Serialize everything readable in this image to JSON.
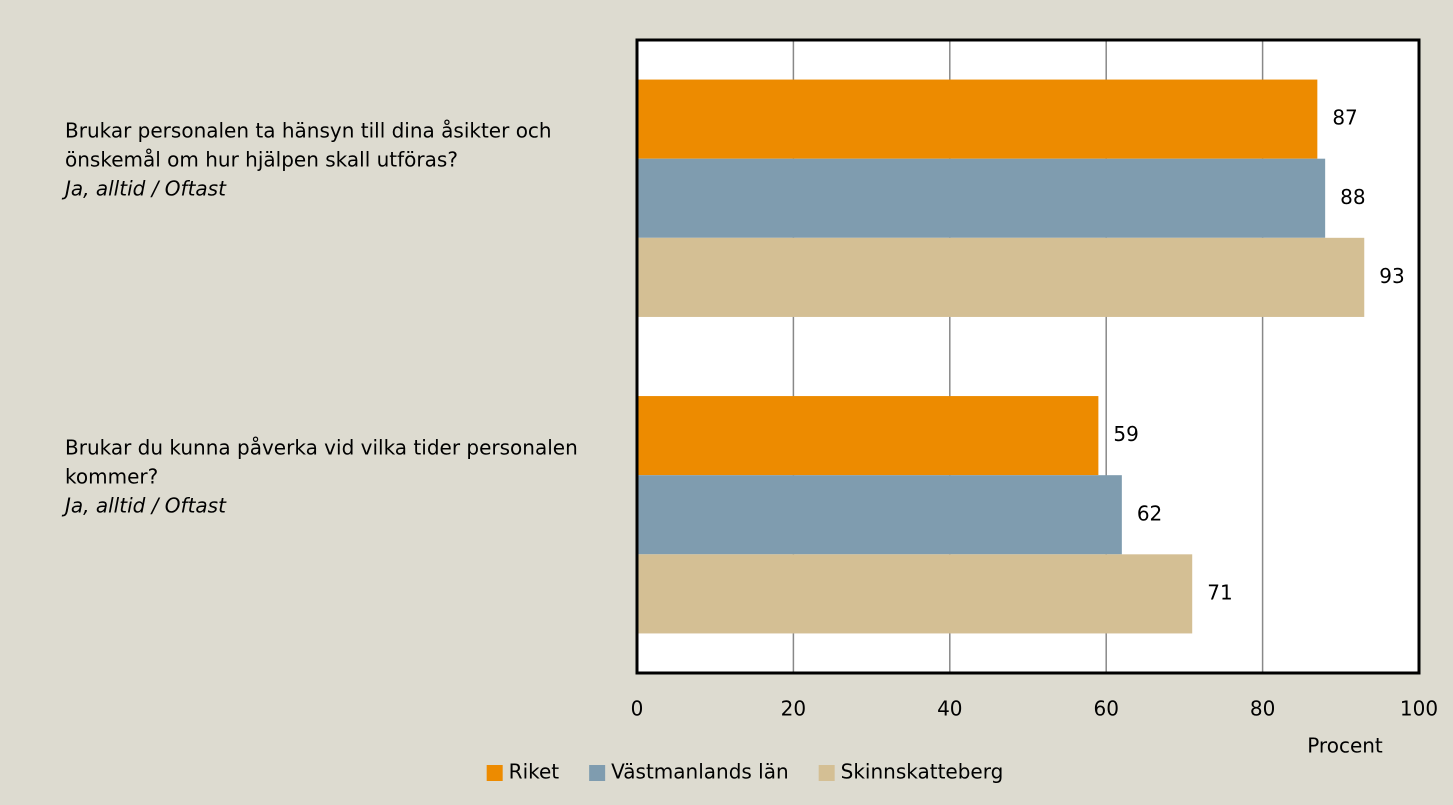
{
  "chart_data": {
    "type": "barh",
    "categories": [
      "Brukar personalen ta hänsyn till dina åsikter och önskemål om hur hjälpen skall utföras?",
      "Brukar du kunna påverka vid vilka tider personalen kommer?"
    ],
    "category_notes": [
      "Ja, alltid / Oftast",
      "Ja, alltid / Oftast"
    ],
    "series": [
      {
        "name": "Riket",
        "color": "#ed8b00",
        "values": [
          87,
          59
        ]
      },
      {
        "name": "Västmanlands län",
        "color": "#7f9caf",
        "values": [
          88,
          62
        ]
      },
      {
        "name": "Skinnskatteberg",
        "color": "#d4bf94",
        "values": [
          93,
          71
        ]
      }
    ],
    "xlabel": "Procent",
    "xlim": [
      0,
      100
    ],
    "xticks": [
      0,
      20,
      40,
      60,
      80,
      100
    ],
    "grid": true,
    "legend": "bottom"
  }
}
